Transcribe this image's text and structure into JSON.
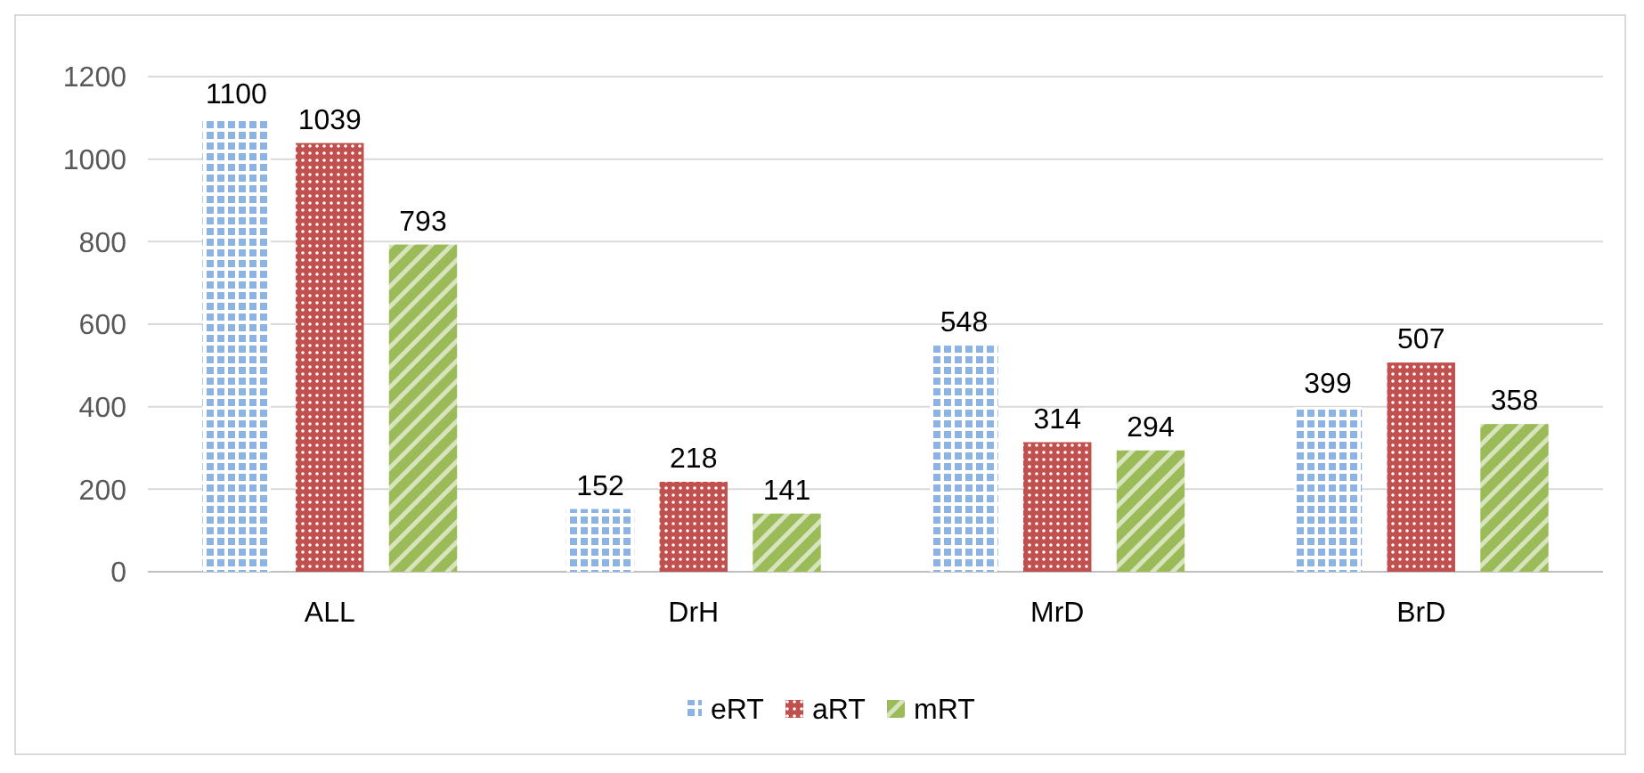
{
  "chart_data": {
    "type": "bar",
    "categories": [
      "ALL",
      "DrH",
      "MrD",
      "BrD"
    ],
    "series": [
      {
        "name": "eRT",
        "color": "#8db3e2",
        "values": [
          1100,
          152,
          548,
          399
        ]
      },
      {
        "name": "aRT",
        "color": "#c0504d",
        "values": [
          1039,
          218,
          314,
          507
        ]
      },
      {
        "name": "mRT",
        "color": "#9bbb59",
        "values": [
          793,
          141,
          294,
          358
        ]
      }
    ],
    "ylim": [
      0,
      1200
    ],
    "yticks": [
      0,
      200,
      400,
      600,
      800,
      1000,
      1200
    ],
    "grid": "y",
    "legend": "bottom",
    "data_labels": true
  }
}
